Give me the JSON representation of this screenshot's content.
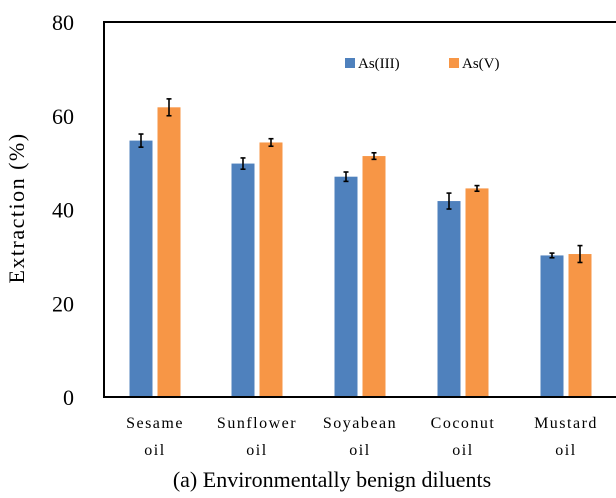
{
  "chart_data": {
    "type": "bar",
    "caption": "(a) Environmentally benign diluents",
    "ylabel": "Extraction (%)",
    "xlabel": "",
    "ylim": [
      0,
      80
    ],
    "yticks": [
      "0",
      "20",
      "40",
      "60",
      "80"
    ],
    "ytick_values": [
      0,
      20,
      40,
      60,
      80
    ],
    "grid": false,
    "legend_position": "top-right",
    "categories": [
      [
        "Sesame",
        "oil"
      ],
      [
        "Sunflower",
        "oil"
      ],
      [
        "Soyabean",
        "oil"
      ],
      [
        "Coconut",
        "oil"
      ],
      [
        "Mustard",
        "oil"
      ]
    ],
    "series": [
      {
        "name": "As(III)",
        "color": "#4F81BD",
        "values": [
          54.7,
          49.8,
          47.0,
          41.8,
          30.2
        ],
        "errors": [
          1.4,
          1.2,
          1.0,
          1.7,
          0.5
        ]
      },
      {
        "name": "As(V)",
        "color": "#F79646",
        "values": [
          61.8,
          54.3,
          51.4,
          44.5,
          30.5
        ],
        "errors": [
          1.8,
          0.8,
          0.7,
          0.6,
          1.8
        ]
      }
    ]
  }
}
